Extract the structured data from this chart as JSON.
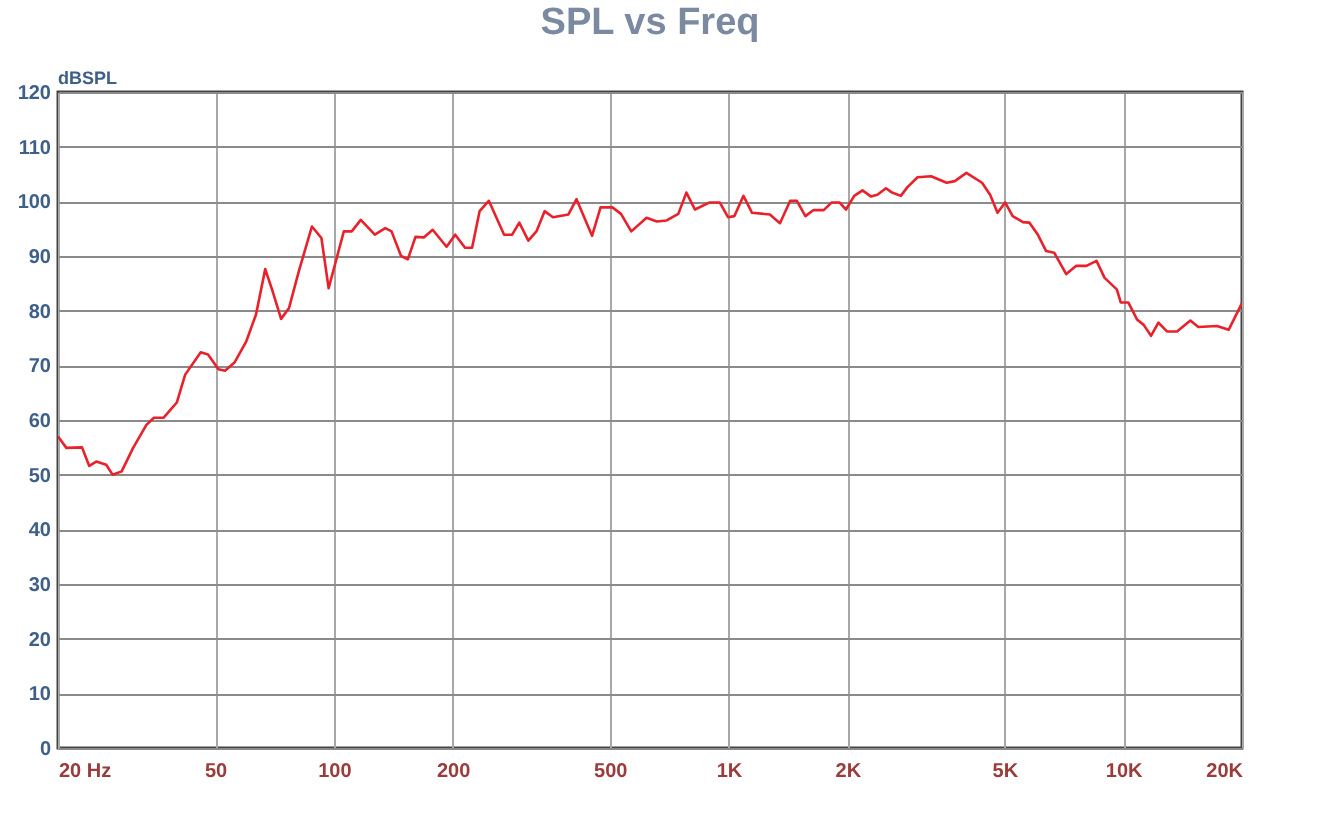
{
  "chart_data": {
    "type": "line",
    "title": "SPL vs Freq",
    "ylabel": "dBSPL",
    "log": "x",
    "grid": true,
    "legend": false,
    "marker": "none",
    "line_style": "solid",
    "xlim": [
      20,
      20000
    ],
    "ylim": [
      0,
      120
    ],
    "xticks": [
      {
        "value": 20,
        "label": "20  Hz"
      },
      50,
      100,
      200,
      500,
      {
        "value": 1000,
        "label": "1K"
      },
      {
        "value": 2000,
        "label": "2K"
      },
      {
        "value": 5000,
        "label": "5K"
      },
      {
        "value": 10000,
        "label": "10K"
      },
      {
        "value": 20000,
        "label": "20K"
      }
    ],
    "yticks": [
      0,
      10,
      20,
      30,
      40,
      50,
      60,
      70,
      80,
      90,
      100,
      110,
      120
    ],
    "x": [
      20,
      21,
      23,
      24,
      25,
      26.5,
      27.5,
      29,
      31,
      33.5,
      35,
      37,
      40,
      42,
      46,
      48,
      51,
      53,
      56,
      60,
      63.5,
      67,
      70,
      73.5,
      77,
      81.5,
      88,
      93,
      97,
      106,
      111,
      117,
      127,
      135,
      140,
      148,
      154,
      161,
      169,
      178,
      193,
      203,
      215,
      224,
      234,
      247,
      270,
      283,
      295,
      311,
      326,
      342,
      359,
      393,
      412,
      451,
      474,
      508,
      534,
      567,
      620,
      658,
      697,
      746,
      782,
      822,
      896,
      950,
      997,
      1035,
      1091,
      1147,
      1273,
      1350,
      1433,
      1490,
      1566,
      1642,
      1742,
      1827,
      1910,
      1985,
      2082,
      2185,
      2293,
      2383,
      2506,
      2597,
      2732,
      2840,
      3013,
      3260,
      3570,
      3743,
      4007,
      4389,
      4601,
      4804,
      5023,
      5248,
      5569,
      5788,
      6067,
      6380,
      6686,
      7173,
      7607,
      8069,
      8557,
      8973,
      9633,
      9860,
      10300,
      10840,
      11270,
      11760,
      12280,
      12910,
      13690,
      14800,
      15500,
      17290,
      18500,
      20000
    ],
    "series": [
      {
        "color": "#e8212b",
        "values": [
          57,
          54.9,
          55,
          51.6,
          52.4,
          51.8,
          50,
          50.6,
          54.9,
          59.1,
          60.4,
          60.4,
          63.2,
          68.3,
          72.4,
          72,
          69.3,
          69,
          70.5,
          74.4,
          79.3,
          87.6,
          83.5,
          78.5,
          80.5,
          87.2,
          95.4,
          93.3,
          84.1,
          94.5,
          94.5,
          96.6,
          93.9,
          95.1,
          94.5,
          90,
          89.4,
          93.5,
          93.4,
          94.8,
          91.7,
          93.9,
          91.5,
          91.5,
          98.2,
          100.1,
          93.9,
          93.9,
          96.1,
          92.8,
          94.5,
          98.2,
          97.1,
          97.6,
          100.4,
          93.7,
          98.9,
          98.9,
          97.7,
          94.5,
          97,
          96.3,
          96.5,
          97.7,
          101.6,
          98.5,
          99.8,
          99.8,
          97.1,
          97.3,
          101,
          97.9,
          97.6,
          96,
          100.1,
          100.1,
          97.3,
          98.4,
          98.4,
          99.8,
          99.8,
          98.5,
          101,
          102,
          100.9,
          101.2,
          102.4,
          101.6,
          101,
          102.6,
          104.4,
          104.6,
          103.4,
          103.7,
          105.2,
          103.4,
          101.2,
          97.9,
          99.8,
          97.3,
          96.2,
          96.1,
          94,
          90.9,
          90.6,
          86.7,
          88.2,
          88.2,
          89.1,
          86,
          83.9,
          81.5,
          81.5,
          78.4,
          77.4,
          75.4,
          77.8,
          76.2,
          76.2,
          78.2,
          77,
          77.2,
          76.5,
          81.4
        ]
      }
    ]
  }
}
